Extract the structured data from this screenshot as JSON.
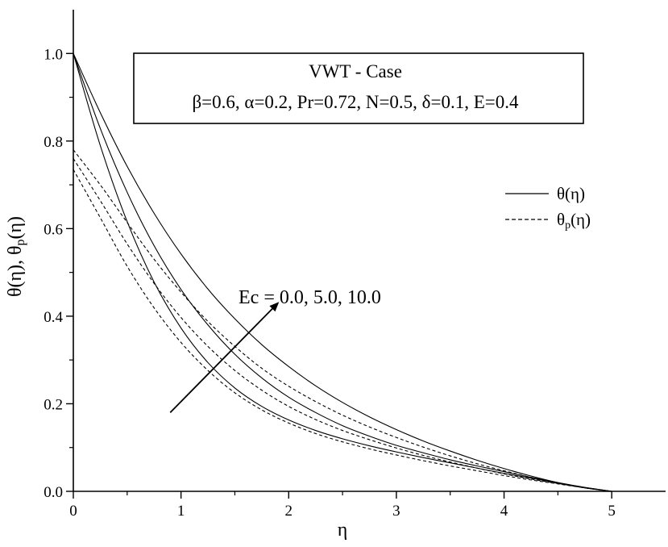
{
  "chart_data": {
    "type": "line",
    "xlabel": "η",
    "ylabel": "θ(η), θp(η)",
    "ylabel_parts": [
      "θ(η), θ",
      "p",
      "(η)"
    ],
    "xlim": [
      0,
      5.5
    ],
    "ylim": [
      0,
      1.1
    ],
    "x_ticks": [
      0,
      1,
      2,
      3,
      4,
      5
    ],
    "x_tick_labels": [
      "0",
      "1",
      "2",
      "3",
      "4",
      "5"
    ],
    "y_ticks": [
      0.0,
      0.2,
      0.4,
      0.6,
      0.8,
      1.0
    ],
    "y_tick_labels": [
      "0.0",
      "0.2",
      "0.4",
      "0.6",
      "0.8",
      "1.0"
    ],
    "grid": false,
    "legend_placement": "right",
    "legend": [
      {
        "label": "θ(η)",
        "style": "solid"
      },
      {
        "label": "θp(η)",
        "label_parts": [
          "θ",
          "p",
          "(η)"
        ],
        "style": "dashed"
      }
    ],
    "info_box": {
      "line1": "VWT - Case",
      "line2": "β=0.6, α=0.2, Pr=0.72, N=0.5, δ=0.1, E=0.4"
    },
    "annotation": {
      "text": "Ec = 0.0, 5.0, 10.0",
      "arrow_from": [
        0.9,
        0.18
      ],
      "arrow_to": [
        1.9,
        0.43
      ]
    },
    "x": [
      0,
      0.25,
      0.5,
      0.75,
      1.0,
      1.25,
      1.5,
      1.75,
      2.0,
      2.25,
      2.5,
      2.75,
      3.0,
      3.25,
      3.5,
      3.75,
      4.0,
      4.25,
      4.5,
      4.75,
      5.0
    ],
    "series": [
      {
        "style": "solid",
        "values": [
          1.0,
          0.865,
          0.742,
          0.635,
          0.542,
          0.462,
          0.394,
          0.335,
          0.285,
          0.241,
          0.203,
          0.17,
          0.141,
          0.115,
          0.092,
          0.071,
          0.052,
          0.035,
          0.02,
          0.008,
          0.0
        ]
      },
      {
        "style": "solid",
        "values": [
          1.0,
          0.829,
          0.683,
          0.561,
          0.461,
          0.38,
          0.313,
          0.259,
          0.215,
          0.18,
          0.15,
          0.126,
          0.105,
          0.088,
          0.072,
          0.058,
          0.045,
          0.032,
          0.02,
          0.009,
          0.0
        ]
      },
      {
        "style": "solid",
        "values": [
          1.0,
          0.79,
          0.616,
          0.478,
          0.373,
          0.294,
          0.236,
          0.194,
          0.163,
          0.139,
          0.12,
          0.104,
          0.09,
          0.077,
          0.065,
          0.053,
          0.041,
          0.03,
          0.019,
          0.009,
          0.0
        ]
      },
      {
        "style": "dashed",
        "values": [
          0.78,
          0.7,
          0.614,
          0.53,
          0.455,
          0.388,
          0.331,
          0.281,
          0.24,
          0.205,
          0.174,
          0.147,
          0.123,
          0.101,
          0.081,
          0.063,
          0.047,
          0.032,
          0.019,
          0.008,
          0.0
        ]
      },
      {
        "style": "dashed",
        "values": [
          0.76,
          0.664,
          0.565,
          0.475,
          0.397,
          0.331,
          0.276,
          0.231,
          0.194,
          0.164,
          0.139,
          0.118,
          0.099,
          0.082,
          0.067,
          0.053,
          0.04,
          0.028,
          0.018,
          0.008,
          0.0
        ]
      },
      {
        "style": "dashed",
        "values": [
          0.735,
          0.625,
          0.514,
          0.419,
          0.34,
          0.276,
          0.225,
          0.186,
          0.156,
          0.132,
          0.113,
          0.097,
          0.083,
          0.07,
          0.058,
          0.047,
          0.036,
          0.026,
          0.017,
          0.008,
          0.0
        ]
      }
    ]
  }
}
